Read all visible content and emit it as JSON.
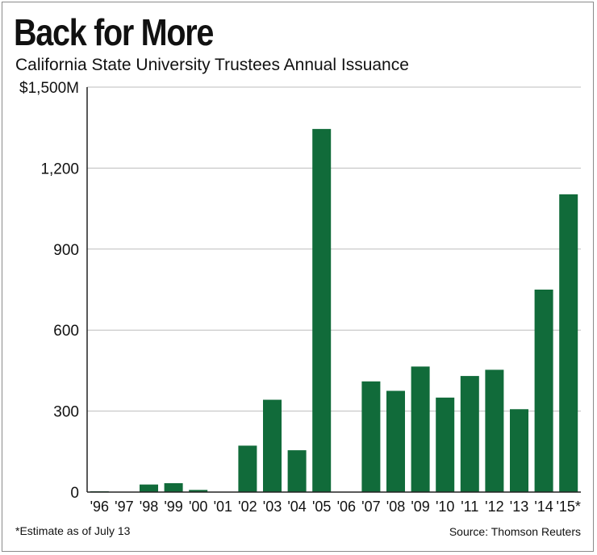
{
  "title": "Back for More",
  "subtitle": "California State University Trustees Annual Issuance",
  "footnote": "*Estimate as of July 13",
  "source": "Source: Thomson Reuters",
  "colors": {
    "bar": "#116b3a",
    "grid": "#bdbdbd",
    "axis": "#222222"
  },
  "chart_data": {
    "type": "bar",
    "title": "Back for More",
    "subtitle": "California State University Trustees Annual Issuance",
    "categories": [
      "'96",
      "'97",
      "'98",
      "'99",
      "'00",
      "'01",
      "'02",
      "'03",
      "'04",
      "'05",
      "'06",
      "'07",
      "'08",
      "'09",
      "'10",
      "'11",
      "'12",
      "'13",
      "'14",
      "'15*"
    ],
    "values": [
      3,
      0,
      28,
      33,
      8,
      0,
      172,
      342,
      155,
      1345,
      0,
      410,
      375,
      465,
      350,
      430,
      453,
      307,
      750,
      1103
    ],
    "ylim": [
      0,
      1500
    ],
    "yticks": [
      0,
      300,
      600,
      900,
      1200,
      1500
    ],
    "ytick_labels": [
      "0",
      "300",
      "600",
      "900",
      "1,200",
      "$1,500M"
    ],
    "xlabel": "",
    "ylabel": "",
    "grid": true,
    "legend": "none"
  }
}
